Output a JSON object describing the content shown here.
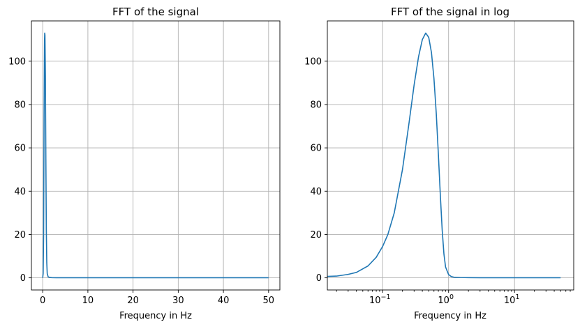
{
  "chart_data": [
    {
      "type": "line",
      "title": "FFT of the signal",
      "xlabel": "Frequency in Hz",
      "ylabel": "",
      "xscale": "linear",
      "xlim": [
        -2.5,
        52.5
      ],
      "ylim": [
        -5.6,
        118.6
      ],
      "grid": true,
      "xticks": [
        0,
        10,
        20,
        30,
        40,
        50
      ],
      "xtick_labels": [
        "0",
        "10",
        "20",
        "30",
        "40",
        "50"
      ],
      "yticks": [
        0,
        20,
        40,
        60,
        80,
        100
      ],
      "ytick_labels": [
        "0",
        "20",
        "40",
        "60",
        "80",
        "100"
      ],
      "series": [
        {
          "color": "#1f77b4",
          "x": [
            0,
            0.1,
            0.2,
            0.3,
            0.4,
            0.45,
            0.5,
            0.6,
            0.7,
            0.8,
            0.9,
            1.0,
            1.2,
            1.5,
            2,
            3,
            5,
            10,
            20,
            30,
            40,
            50
          ],
          "y": [
            0,
            2,
            20,
            75,
            110,
            113,
            112,
            92,
            55,
            22,
            7,
            2,
            0.5,
            0.2,
            0.1,
            0.05,
            0.05,
            0.05,
            0.05,
            0.05,
            0.05,
            0.05
          ]
        }
      ]
    },
    {
      "type": "line",
      "title": "FFT of the signal in log",
      "xlabel": "Frequency in Hz",
      "ylabel": "",
      "xscale": "log",
      "xlim": [
        0.0145,
        79
      ],
      "ylim": [
        -5.6,
        118.6
      ],
      "grid": true,
      "xticks": [
        0.1,
        1,
        10
      ],
      "xtick_labels": [
        "10",
        "10",
        "10"
      ],
      "xtick_exponents": [
        "−1",
        "0",
        "1"
      ],
      "yticks": [
        0,
        20,
        40,
        60,
        80,
        100
      ],
      "ytick_labels": [
        "0",
        "20",
        "40",
        "60",
        "80",
        "100"
      ],
      "series": [
        {
          "color": "#1f77b4",
          "x": [
            0.01,
            0.02,
            0.03,
            0.04,
            0.06,
            0.08,
            0.1,
            0.12,
            0.15,
            0.2,
            0.25,
            0.3,
            0.35,
            0.4,
            0.45,
            0.5,
            0.55,
            0.6,
            0.65,
            0.7,
            0.75,
            0.8,
            0.85,
            0.9,
            1.0,
            1.1,
            1.2,
            1.5,
            2,
            3,
            5,
            10,
            20,
            50
          ],
          "y": [
            0.5,
            0.8,
            1.6,
            2.5,
            5.5,
            9.5,
            14.5,
            20,
            30,
            50,
            71,
            89,
            102,
            110,
            113,
            111,
            104,
            92,
            76,
            57,
            38,
            22,
            11,
            5,
            1.5,
            0.6,
            0.3,
            0.15,
            0.1,
            0.05,
            0.05,
            0.05,
            0.05,
            0.05
          ]
        }
      ]
    }
  ]
}
